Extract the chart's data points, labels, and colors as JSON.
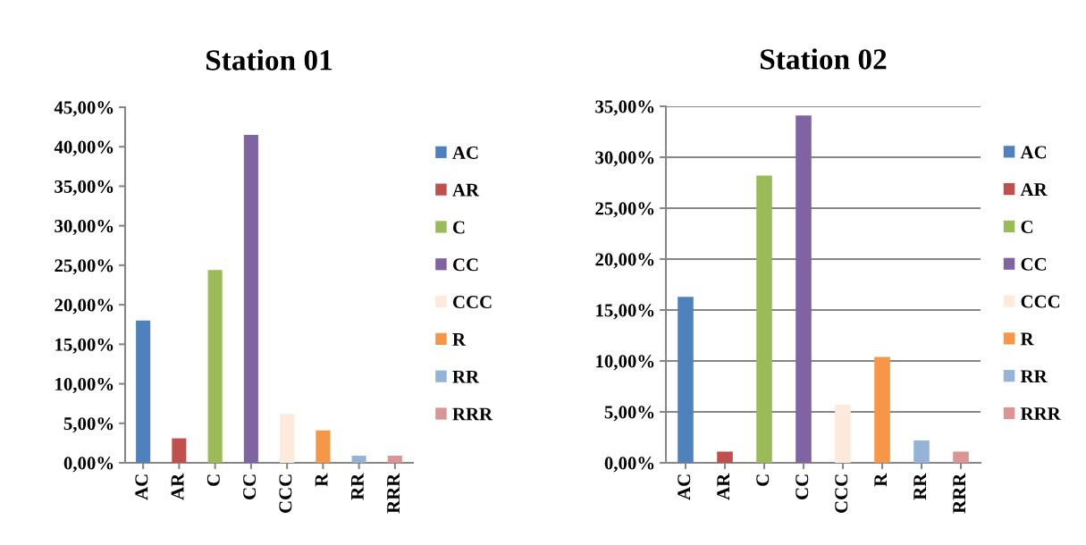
{
  "chart_data": [
    {
      "type": "bar",
      "title": "Station 01",
      "categories": [
        "AC",
        "AR",
        "C",
        "CC",
        "CCC",
        "R",
        "RR",
        "RRR"
      ],
      "series": [
        {
          "name": "AC",
          "color": "#4f81bd",
          "values": [
            18.0,
            null,
            null,
            null,
            null,
            null,
            null,
            null
          ]
        },
        {
          "name": "AR",
          "color": "#c0504d",
          "values": [
            null,
            3.1,
            null,
            null,
            null,
            null,
            null,
            null
          ]
        },
        {
          "name": "C",
          "color": "#9bbb59",
          "values": [
            null,
            null,
            24.4,
            null,
            null,
            null,
            null,
            null
          ]
        },
        {
          "name": "CC",
          "color": "#8064a2",
          "values": [
            null,
            null,
            null,
            41.5,
            null,
            null,
            null,
            null
          ]
        },
        {
          "name": "CCC",
          "color": "#fdeada",
          "values": [
            null,
            null,
            null,
            null,
            6.2,
            null,
            null,
            null
          ]
        },
        {
          "name": "R",
          "color": "#f79646",
          "values": [
            null,
            null,
            null,
            null,
            null,
            4.1,
            null,
            null
          ]
        },
        {
          "name": "RR",
          "color": "#95b3d7",
          "values": [
            null,
            null,
            null,
            null,
            null,
            null,
            0.9,
            null
          ]
        },
        {
          "name": "RRR",
          "color": "#d99694",
          "values": [
            null,
            null,
            null,
            null,
            null,
            null,
            null,
            0.9
          ]
        }
      ],
      "ylim": [
        0,
        45
      ],
      "yticks": [
        {
          "value": 0,
          "label": "0,00%"
        },
        {
          "value": 5,
          "label": "5,00%"
        },
        {
          "value": 10,
          "label": "10,00%"
        },
        {
          "value": 15,
          "label": "15,00%"
        },
        {
          "value": 20,
          "label": "20,00%"
        },
        {
          "value": 25,
          "label": "25,00%"
        },
        {
          "value": 30,
          "label": "30,00%"
        },
        {
          "value": 35,
          "label": "35,00%"
        },
        {
          "value": 40,
          "label": "40,00%"
        },
        {
          "value": 45,
          "label": "45,00%"
        }
      ],
      "grid": false,
      "legend": "right"
    },
    {
      "type": "bar",
      "title": "Station 02",
      "categories": [
        "AC",
        "AR",
        "C",
        "CC",
        "CCC",
        "R",
        "RR",
        "RRR"
      ],
      "series": [
        {
          "name": "AC",
          "color": "#4f81bd",
          "values": [
            16.3,
            null,
            null,
            null,
            null,
            null,
            null,
            null
          ]
        },
        {
          "name": "AR",
          "color": "#c0504d",
          "values": [
            null,
            1.1,
            null,
            null,
            null,
            null,
            null,
            null
          ]
        },
        {
          "name": "C",
          "color": "#9bbb59",
          "values": [
            null,
            null,
            28.2,
            null,
            null,
            null,
            null,
            null
          ]
        },
        {
          "name": "CC",
          "color": "#8064a2",
          "values": [
            null,
            null,
            null,
            34.1,
            null,
            null,
            null,
            null
          ]
        },
        {
          "name": "CCC",
          "color": "#fdeada",
          "values": [
            null,
            null,
            null,
            null,
            5.7,
            null,
            null,
            null
          ]
        },
        {
          "name": "R",
          "color": "#f79646",
          "values": [
            null,
            null,
            null,
            null,
            null,
            10.4,
            null,
            null
          ]
        },
        {
          "name": "RR",
          "color": "#95b3d7",
          "values": [
            null,
            null,
            null,
            null,
            null,
            null,
            2.2,
            null
          ]
        },
        {
          "name": "RRR",
          "color": "#d99694",
          "values": [
            null,
            null,
            null,
            null,
            null,
            null,
            null,
            1.1
          ]
        }
      ],
      "ylim": [
        0,
        35
      ],
      "yticks": [
        {
          "value": 0,
          "label": "0,00%"
        },
        {
          "value": 5,
          "label": "5,00%"
        },
        {
          "value": 10,
          "label": "10,00%"
        },
        {
          "value": 15,
          "label": "15,00%"
        },
        {
          "value": 20,
          "label": "20,00%"
        },
        {
          "value": 25,
          "label": "25,00%"
        },
        {
          "value": 30,
          "label": "30,00%"
        },
        {
          "value": 35,
          "label": "35,00%"
        }
      ],
      "grid": "y",
      "legend": "right"
    }
  ]
}
